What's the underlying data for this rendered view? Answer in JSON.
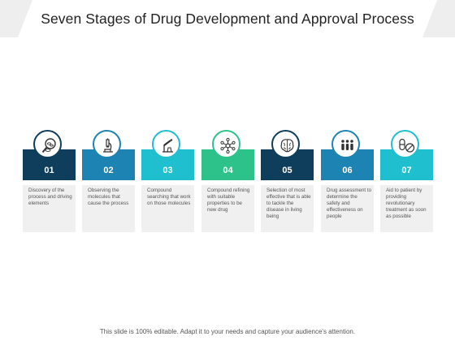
{
  "title": "Seven Stages of Drug Development and Approval Process",
  "footer": "This slide is 100% editable. Adapt it to your needs and capture your audience's attention.",
  "stages": [
    {
      "number": "01",
      "color": "#0f3d5c",
      "icon": "magnifier-pills-icon",
      "description": "Discovery of the process and driving elements"
    },
    {
      "number": "02",
      "color": "#1d83b2",
      "icon": "microscope-icon",
      "description": "Observing the molecules that cause the process"
    },
    {
      "number": "03",
      "color": "#1fbfcf",
      "icon": "lab-flask-icon",
      "description": "Compound searching that work on those molecules"
    },
    {
      "number": "04",
      "color": "#2cc28a",
      "icon": "molecule-network-icon",
      "description": "Compound refining with suitable properties to be new drug"
    },
    {
      "number": "05",
      "color": "#0f3d5c",
      "icon": "brain-icon",
      "description": "Selection of most effective that is able to tackle the disease in living being"
    },
    {
      "number": "06",
      "color": "#1d83b2",
      "icon": "people-group-icon",
      "description": "Drug assessment to determine the safety and effectiveness on people"
    },
    {
      "number": "07",
      "color": "#1fbfcf",
      "icon": "pill-capsule-icon",
      "description": "Aid to patient by providing revolutionary treatment as soon as possible"
    }
  ]
}
